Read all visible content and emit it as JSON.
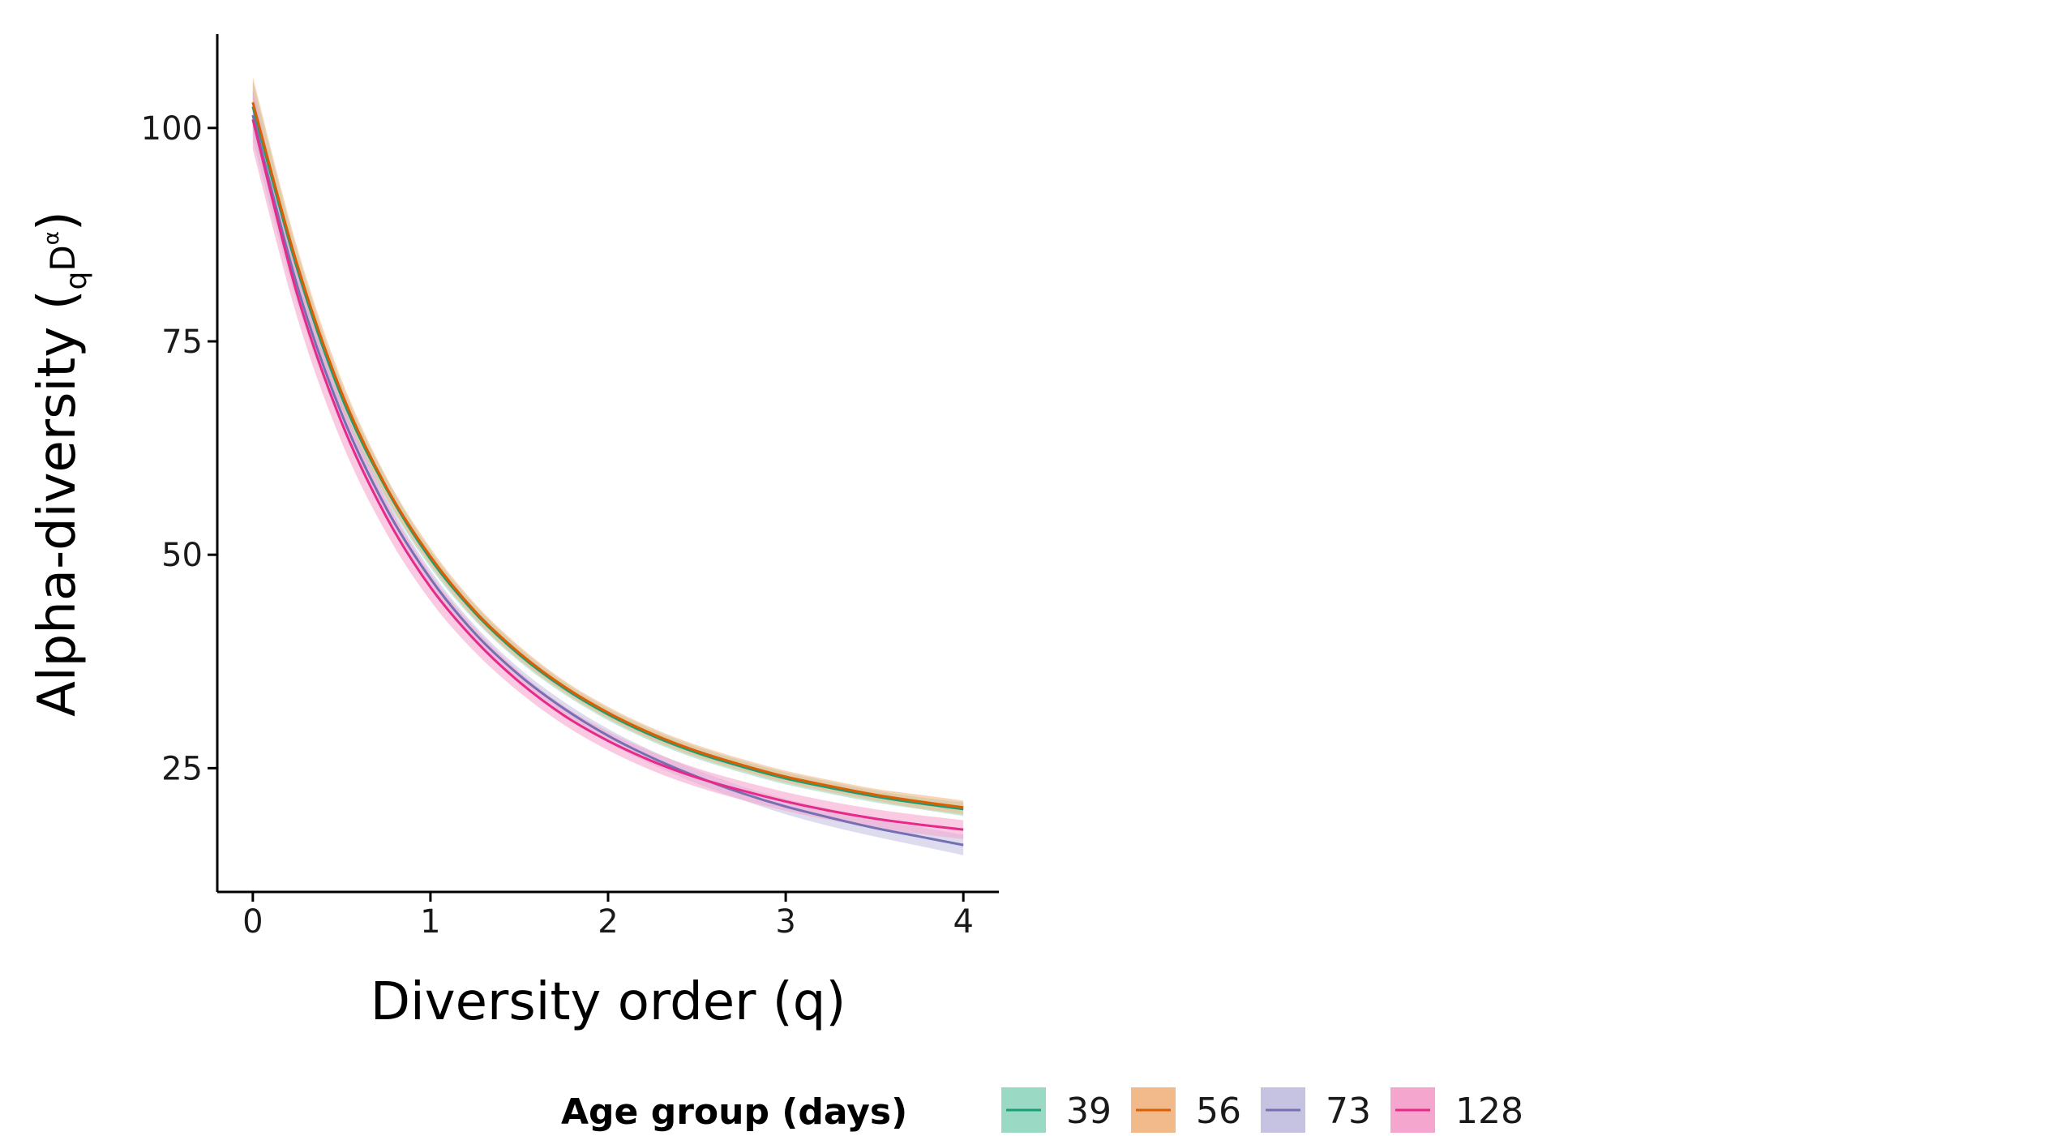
{
  "chart_data": {
    "type": "line",
    "title": "",
    "xlabel": "Diversity order (q)",
    "ylabel": {
      "main": "Alpha-diversity (",
      "sub": "q",
      "base": "D",
      "sup": "α",
      "close": ")"
    },
    "xlim": [
      -0.2,
      4.2
    ],
    "ylim": [
      10.5,
      111
    ],
    "x_ticks": [
      0,
      1,
      2,
      3,
      4
    ],
    "y_ticks": [
      25,
      50,
      75,
      100
    ],
    "grid": false,
    "legend": {
      "title": "Age group (days)",
      "placement": "bottom"
    },
    "x": [
      0,
      0.25,
      0.5,
      0.75,
      1,
      1.25,
      1.5,
      1.75,
      2,
      2.25,
      2.5,
      2.75,
      3,
      3.25,
      3.5,
      3.75,
      4
    ],
    "series": [
      {
        "name": "39",
        "color": "#1b9e77",
        "band": "#9ad9c4",
        "values": [
          102.5,
          83.5,
          68.5,
          57.8,
          49.5,
          43.2,
          38.3,
          34.4,
          31.3,
          28.8,
          26.8,
          25.2,
          23.8,
          22.7,
          21.7,
          20.9,
          20.2
        ],
        "lower": [
          99.5,
          81.5,
          67.0,
          56.6,
          48.5,
          42.3,
          37.5,
          33.7,
          30.6,
          28.1,
          26.1,
          24.5,
          23.1,
          22.0,
          21.0,
          20.2,
          19.4
        ],
        "upper": [
          105.5,
          85.5,
          70.0,
          59.0,
          50.5,
          44.1,
          39.1,
          35.1,
          32.0,
          29.5,
          27.5,
          25.9,
          24.5,
          23.4,
          22.4,
          21.6,
          21.0
        ]
      },
      {
        "name": "56",
        "color": "#d95f02",
        "band": "#f2b98a",
        "values": [
          103,
          84,
          69,
          58,
          49.8,
          43.4,
          38.5,
          34.6,
          31.5,
          29.0,
          27.0,
          25.4,
          24.0,
          22.9,
          21.9,
          21.1,
          20.4
        ],
        "lower": [
          100,
          82,
          67.5,
          56.8,
          48.8,
          42.5,
          37.7,
          33.9,
          30.8,
          28.3,
          26.3,
          24.7,
          23.3,
          22.2,
          21.2,
          20.3,
          19.6
        ],
        "upper": [
          106,
          86,
          70.5,
          59.2,
          50.8,
          44.3,
          39.3,
          35.3,
          32.2,
          29.7,
          27.7,
          26.1,
          24.7,
          23.6,
          22.6,
          21.9,
          21.2
        ]
      },
      {
        "name": "73",
        "color": "#7570b3",
        "band": "#c6c3e2",
        "values": [
          101.5,
          81.5,
          66.5,
          55.5,
          47.2,
          40.8,
          35.9,
          32.0,
          28.8,
          26.2,
          24.0,
          22.1,
          20.5,
          19.2,
          18.0,
          17.0,
          16.0
        ],
        "lower": [
          98.5,
          79.5,
          65.0,
          54.3,
          46.2,
          39.9,
          35.1,
          31.2,
          28.0,
          25.4,
          23.2,
          21.3,
          19.6,
          18.2,
          17.0,
          15.9,
          14.8
        ],
        "upper": [
          104.5,
          83.5,
          68.0,
          56.7,
          48.2,
          41.7,
          36.7,
          32.8,
          29.6,
          27.0,
          24.8,
          22.9,
          21.4,
          20.2,
          19.0,
          18.1,
          17.2
        ]
      },
      {
        "name": "128",
        "color": "#e7298a",
        "band": "#f5a6cf",
        "values": [
          101,
          80.5,
          65.5,
          54.5,
          46.2,
          40.0,
          35.1,
          31.2,
          28.2,
          25.8,
          23.9,
          22.4,
          21.1,
          20.0,
          19.1,
          18.4,
          17.8
        ],
        "lower": [
          97.5,
          77.8,
          63.2,
          52.6,
          44.6,
          38.6,
          33.9,
          30.1,
          27.1,
          24.7,
          22.8,
          21.3,
          20.0,
          18.9,
          18.0,
          17.3,
          16.7
        ],
        "upper": [
          104.5,
          83.2,
          67.8,
          56.4,
          47.8,
          41.4,
          36.3,
          32.3,
          29.3,
          26.9,
          25.0,
          23.5,
          22.2,
          21.1,
          20.2,
          19.5,
          18.9
        ]
      }
    ]
  }
}
